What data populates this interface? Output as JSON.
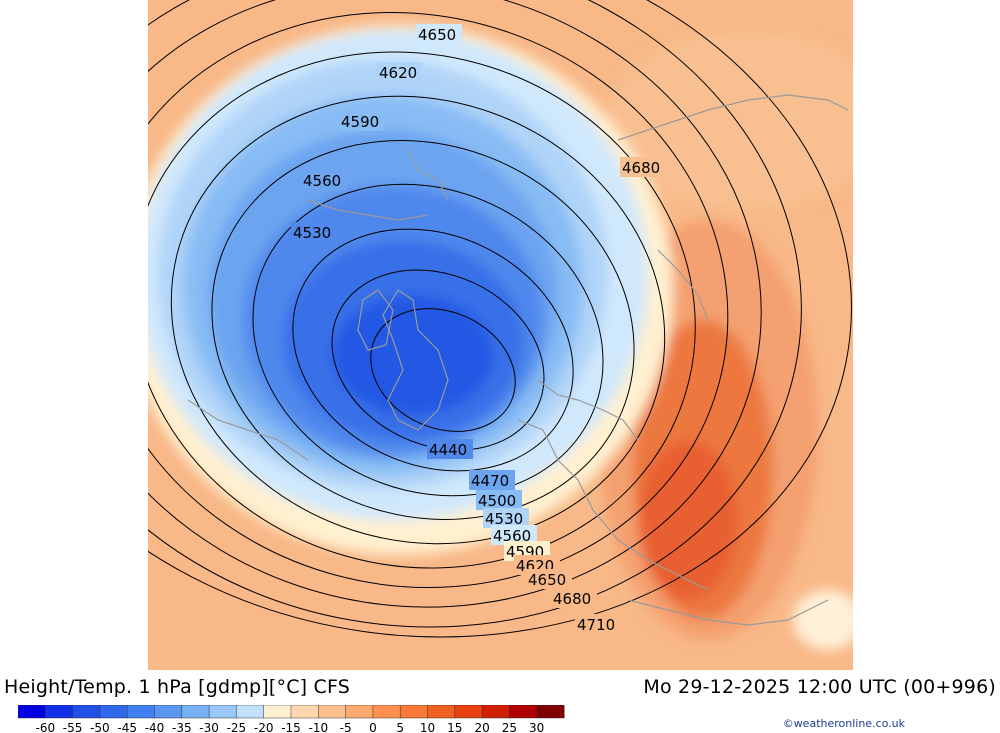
{
  "title": "Height/Temp. 1 hPa [gdmp][°C] CFS",
  "valid_time": "Mo 29-12-2025 12:00 UTC (00+996)",
  "credit": "©weatheronline.co.uk",
  "legend": {
    "labels": [
      "-60",
      "-55",
      "-50",
      "-45",
      "-40",
      "-35",
      "-30",
      "-25",
      "-20",
      "-15",
      "-10",
      "-5",
      "0",
      "5",
      "10",
      "15",
      "20",
      "25",
      "30"
    ],
    "colors": [
      "#0000e0",
      "#1030e8",
      "#2050e8",
      "#3068ec",
      "#4080f0",
      "#5898f0",
      "#78b0f4",
      "#98c8f8",
      "#c0e0fc",
      "#fff0d0",
      "#ffd8b0",
      "#ffc090",
      "#ffa870",
      "#ff9050",
      "#f87838",
      "#f06020",
      "#e84010",
      "#d02000",
      "#b00000",
      "#800000"
    ]
  },
  "contours": {
    "labels": [
      "4650",
      "4620",
      "4590",
      "4560",
      "4530",
      "4680",
      "4440",
      "4470",
      "4500",
      "4530",
      "4560",
      "4590",
      "4620",
      "4650",
      "4680",
      "4710"
    ]
  }
}
